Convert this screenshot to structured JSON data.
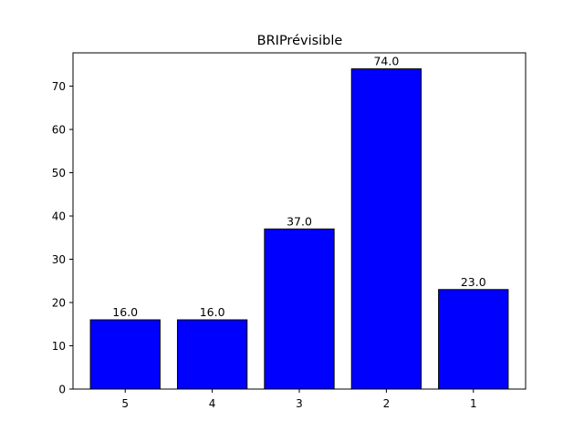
{
  "chart_data": {
    "type": "bar",
    "title": "BRIPrévisible",
    "xlabel": "",
    "ylabel": "",
    "categories": [
      "5",
      "4",
      "3",
      "2",
      "1"
    ],
    "values": [
      16.0,
      16.0,
      37.0,
      74.0,
      23.0
    ],
    "value_labels": [
      "16.0",
      "16.0",
      "37.0",
      "74.0",
      "23.0"
    ],
    "ylim": [
      0,
      77.7
    ],
    "yticks": [
      0,
      10,
      20,
      30,
      40,
      50,
      60,
      70
    ],
    "ytick_labels": [
      "0",
      "10",
      "20",
      "30",
      "40",
      "50",
      "60",
      "70"
    ],
    "grid": false,
    "legend": "none",
    "bar_color": "#0000ff",
    "edge_color": "#000000"
  }
}
